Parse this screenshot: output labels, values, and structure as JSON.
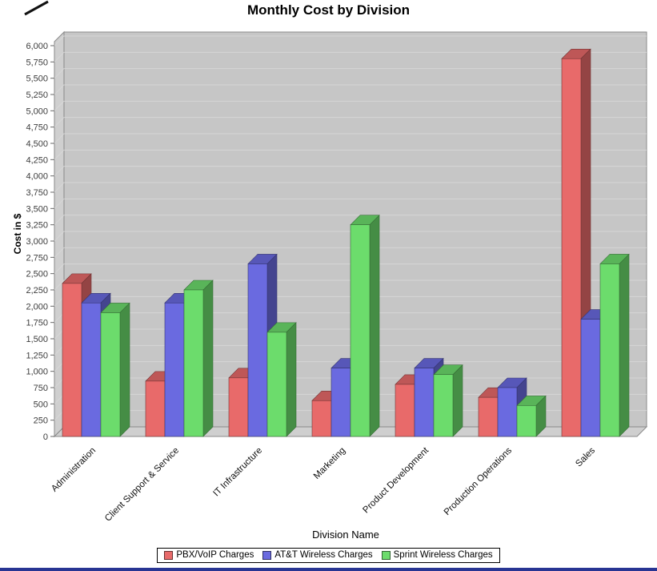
{
  "window": {
    "bottom_border_color": "#283593"
  },
  "chart_data": {
    "type": "bar",
    "style": "3d-grouped-bars",
    "title": "Monthly Cost by Division",
    "xlabel": "Division Name",
    "ylabel": "Cost in $",
    "ylim": [
      0,
      6000
    ],
    "ytick_step": 250,
    "grid": true,
    "legend_position": "bottom",
    "plot_background": "#c6c6c6",
    "categories": [
      "Administration",
      "Client Support & Service",
      "IT Infrastructure",
      "Marketing",
      "Product Development",
      "Production Operations",
      "Sales"
    ],
    "series": [
      {
        "name": "PBX/VoIP Charges",
        "color": "#e86a6a",
        "values": [
          2350,
          850,
          900,
          550,
          800,
          600,
          5800
        ]
      },
      {
        "name": "AT&T Wireless Charges",
        "color": "#6a6ae0",
        "values": [
          2050,
          2050,
          2650,
          1050,
          1050,
          750,
          1800
        ]
      },
      {
        "name": "Sprint Wireless Charges",
        "color": "#6cdc6c",
        "values": [
          1900,
          2250,
          1600,
          3250,
          950,
          475,
          2650
        ]
      }
    ]
  }
}
